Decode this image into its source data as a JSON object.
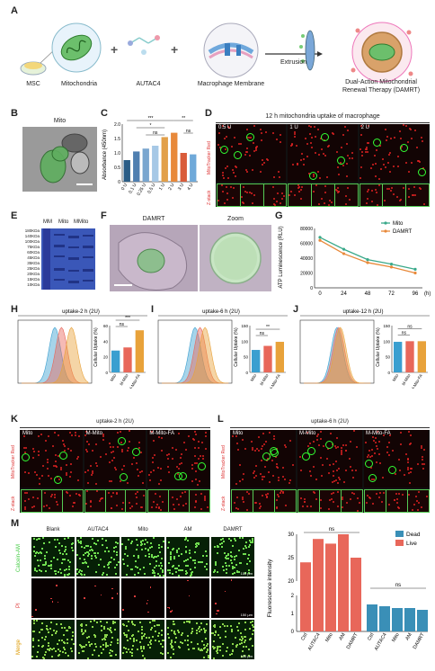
{
  "panels": {
    "A": {
      "label": "A",
      "items": [
        "MSC",
        "Mitochondria",
        "AUTAC4",
        "Macrophage Membrane"
      ],
      "extrusion": "Extrusion",
      "result_line1": "Dual-Action Mitochondrial",
      "result_line2": "Renewal Therapy (DAMRT)"
    },
    "B": {
      "label": "B",
      "title": "Mito"
    },
    "C": {
      "label": "C",
      "ylabel": "Absorbance (450nm)",
      "sig1": "***",
      "sig2": "*",
      "sig3": "ns",
      "sig4": "**",
      "sig5": "ns"
    },
    "D": {
      "label": "D",
      "title": "12 h mitochondria uptake of macrophage",
      "cols": [
        "0.5 U",
        "1 U",
        "2 U"
      ],
      "row1": "MitoTracker Red",
      "row2": "Z-stack"
    },
    "E": {
      "label": "E",
      "lanes": [
        "MM",
        "Mito",
        "MMito"
      ],
      "markers": [
        "180KDa",
        "140KDa",
        "100KDa",
        "75KDa",
        "60KDa",
        "45KDa",
        "35KDa",
        "25KDa",
        "20KDa",
        "15KDa",
        "10KDa"
      ]
    },
    "F": {
      "label": "F",
      "left": "DAMRT",
      "right": "Zoom"
    },
    "G": {
      "label": "G",
      "ylabel": "ATP Luminescence (RLU)",
      "xunit": "(h)",
      "legend": [
        "Mito",
        "DAMRT"
      ]
    },
    "H": {
      "label": "H",
      "title": "uptake-2 h (2U)",
      "sig1": "***",
      "sig2": "ns"
    },
    "I": {
      "label": "I",
      "title": "uptake-6 h (2U)",
      "sig1": "**",
      "sig2": "ns"
    },
    "J": {
      "label": "J",
      "title": "uptake-12 h (2U)",
      "sig1": "ns",
      "sig2": "ns"
    },
    "K": {
      "label": "K",
      "title": "uptake-2 h (2U)",
      "cols": [
        "Mito",
        "M-Mito",
        "M-Mito-FA"
      ],
      "row1": "MitoTracker Red",
      "row2": "Z-stack"
    },
    "L": {
      "label": "L",
      "title": "uptake-6 h (2U)",
      "cols": [
        "Mito",
        "M-Mito",
        "M-Mito-FA"
      ],
      "row1": "MitoTracker Red",
      "row2": "Z-stack"
    },
    "M": {
      "label": "M",
      "cols": [
        "Blank",
        "AUTAC4",
        "Mito",
        "AM",
        "DAMRT"
      ],
      "rows": [
        "Calcein-AM",
        "PI",
        "Merge"
      ],
      "scale": "150 µm",
      "ylabel": "Fluorescence intensity",
      "legend": [
        "Dead",
        "Live"
      ],
      "sig1": "ns",
      "sig2": "ns"
    }
  },
  "flow_ylabel": "Cellular Uptake (%)",
  "flow_cats": [
    "Mito",
    "M-Mito",
    "M-Mito-FA"
  ],
  "chart_data": [
    {
      "type": "bar",
      "id": "C",
      "categories": [
        "0 U",
        "0.1 U",
        "0.25 U",
        "0.5 U",
        "1 U",
        "2 U",
        "3 U",
        "4 U"
      ],
      "values": [
        0.75,
        1.05,
        1.15,
        1.25,
        1.55,
        1.7,
        1.0,
        0.95
      ],
      "ylabel": "Absorbance (450nm)",
      "ylim": [
        0,
        2
      ],
      "yticks": [
        "0",
        "0.5",
        "1.0",
        "1.5",
        "2.0"
      ]
    },
    {
      "type": "line",
      "id": "G",
      "x": [
        0,
        24,
        48,
        72,
        96
      ],
      "xticks": [
        "0",
        "24",
        "48",
        "72",
        "96"
      ],
      "xlabel": "(h)",
      "ylabel": "ATP Luminescence (RLU)",
      "ylim": [
        0,
        80000
      ],
      "yticks": [
        "0",
        "20000",
        "40000",
        "60000",
        "80000"
      ],
      "series": [
        {
          "name": "Mito",
          "values": [
            68000,
            52000,
            38000,
            32000,
            25000
          ],
          "color": "#3aa98a"
        },
        {
          "name": "DAMRT",
          "values": [
            64000,
            46000,
            34000,
            28000,
            20000
          ],
          "color": "#e8893a"
        }
      ]
    },
    {
      "type": "bar",
      "id": "H",
      "categories": [
        "Mito",
        "M-Mito",
        "M-Mito-FA"
      ],
      "values": [
        28,
        32,
        54
      ],
      "ylim": [
        0,
        60
      ],
      "yticks": [
        "0",
        "20",
        "40",
        "60"
      ]
    },
    {
      "type": "bar",
      "id": "I",
      "categories": [
        "Mito",
        "M-Mito",
        "M-Mito-FA"
      ],
      "values": [
        72,
        85,
        98
      ],
      "ylim": [
        0,
        150
      ],
      "yticks": [
        "0",
        "50",
        "100",
        "150"
      ]
    },
    {
      "type": "bar",
      "id": "J",
      "categories": [
        "Mito",
        "M-Mito",
        "M-Mito-FA"
      ],
      "values": [
        98,
        100,
        100
      ],
      "ylim": [
        0,
        150
      ],
      "yticks": [
        "0",
        "50",
        "100",
        "150"
      ]
    },
    {
      "type": "bar",
      "id": "M",
      "categories": [
        "Ctrl",
        "AUTAC4",
        "Mito",
        "AM",
        "DAMRT"
      ],
      "series": [
        {
          "name": "Live",
          "values": [
            24,
            29,
            28,
            30,
            25
          ],
          "color": "#e8675a"
        },
        {
          "name": "Dead",
          "values": [
            1.5,
            1.4,
            1.3,
            1.3,
            1.2
          ],
          "color": "#3a8fb7"
        }
      ],
      "ylabel": "Fluorescence intensity",
      "yticks": [
        "0",
        "1",
        "2",
        "20",
        "25",
        "30"
      ]
    }
  ]
}
